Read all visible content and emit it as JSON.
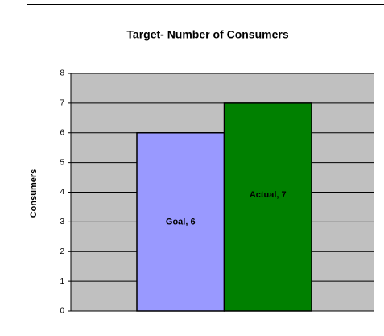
{
  "chart_data": {
    "type": "bar",
    "title": "Target- Number of Consumers",
    "y_label": "Consumers",
    "values": [
      6,
      7
    ],
    "value_labels": [
      "Goal, 6",
      "Actual, 7"
    ],
    "colors": [
      "#9999ff",
      "#008000"
    ],
    "ylim": [
      0,
      8
    ],
    "yticks": [
      0,
      1,
      2,
      3,
      4,
      5,
      6,
      7,
      8
    ],
    "grid": true,
    "plot_background": "#c0c0c0"
  }
}
